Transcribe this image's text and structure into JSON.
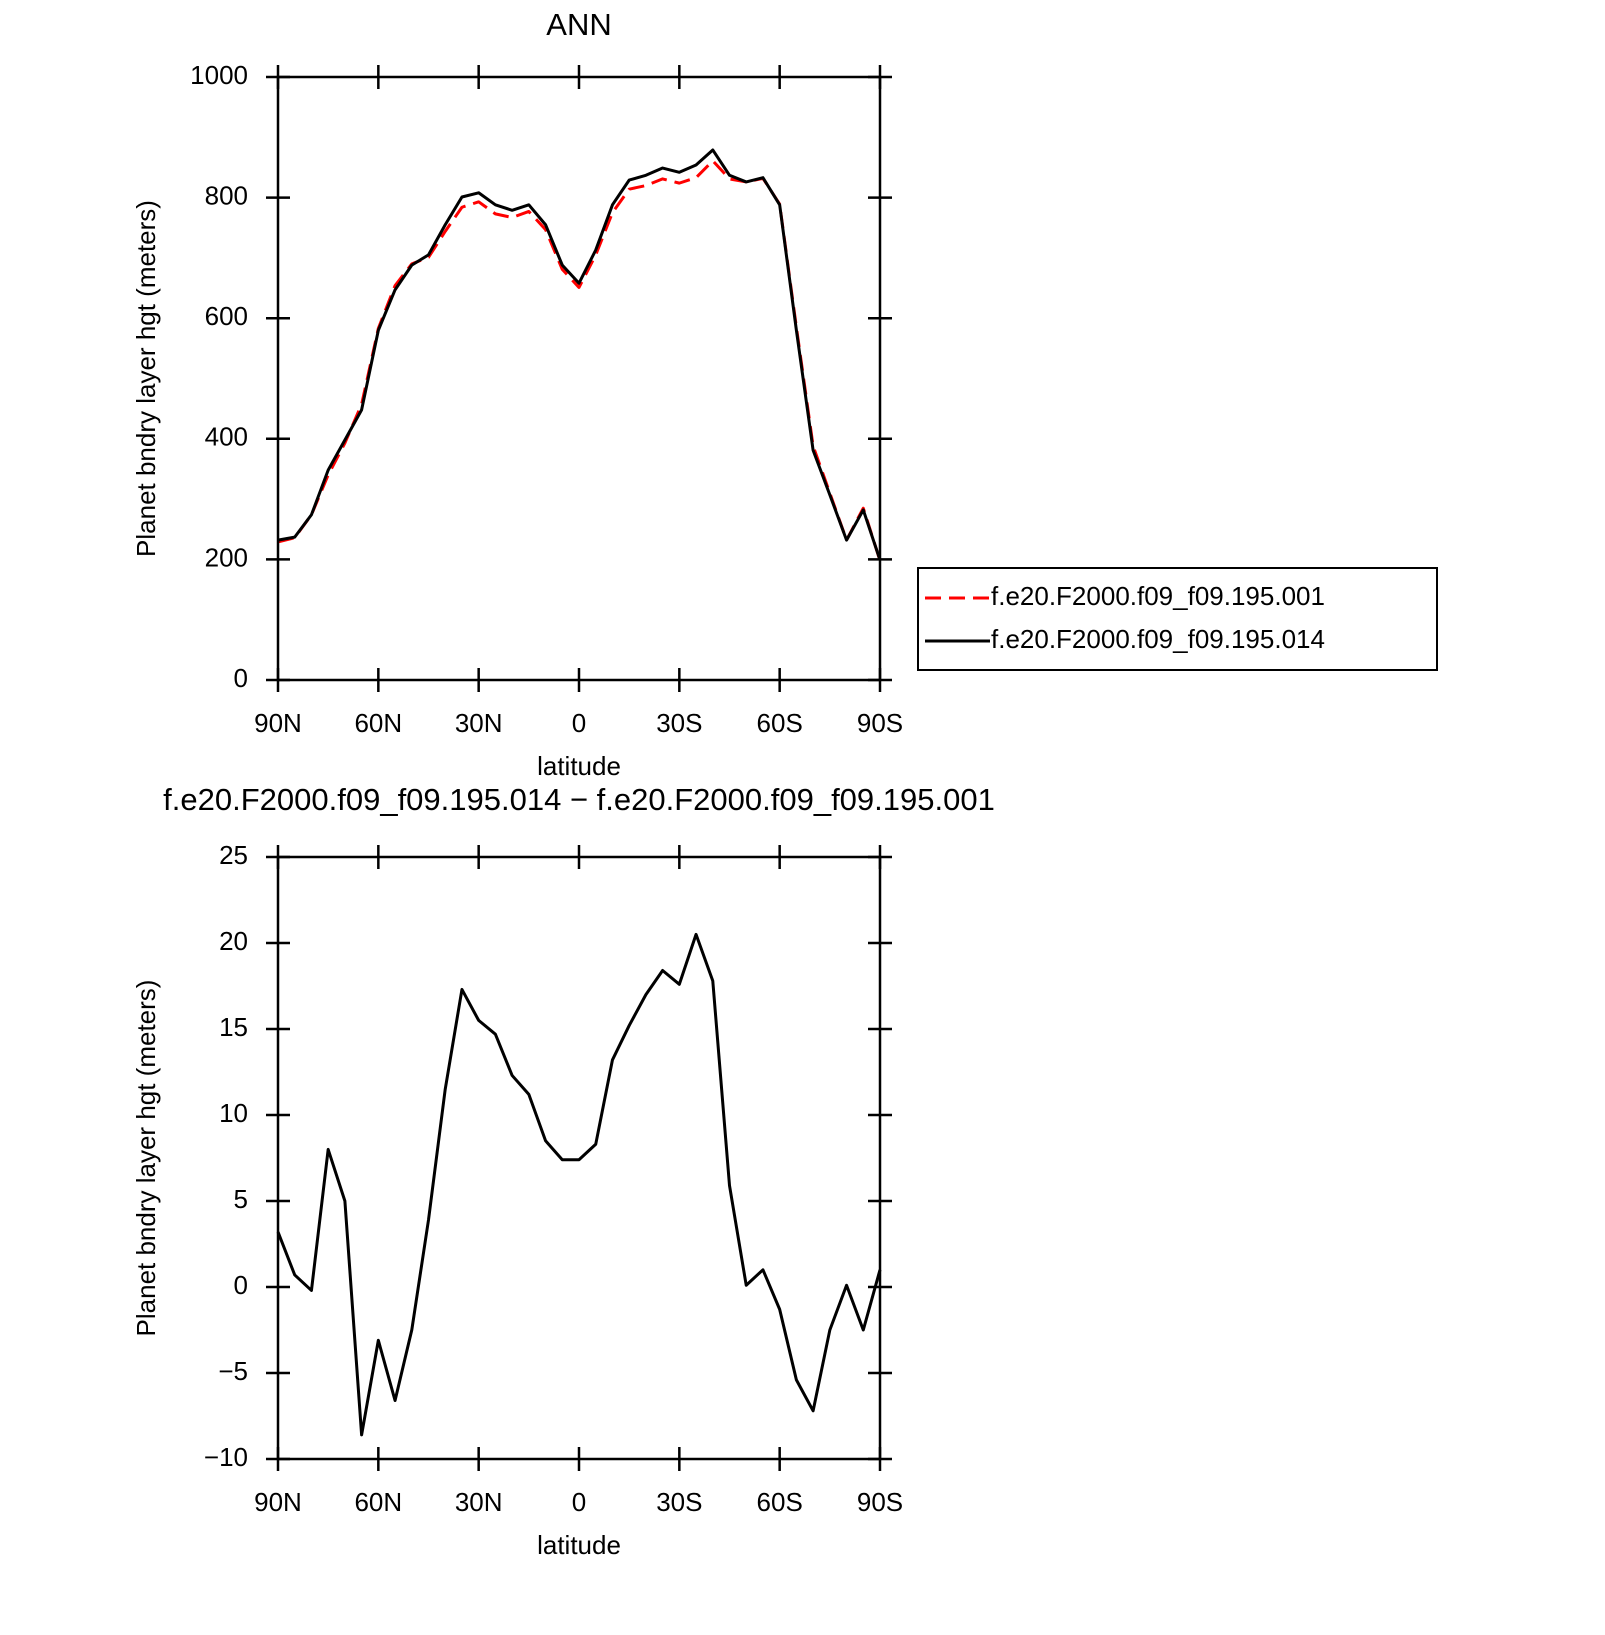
{
  "chart_data": [
    {
      "type": "line",
      "title": "ANN",
      "xlabel": "latitude",
      "ylabel": "Planet bndry layer hgt (meters)",
      "x": [
        90,
        85,
        80,
        75,
        70,
        65,
        60,
        55,
        50,
        45,
        40,
        35,
        30,
        25,
        20,
        15,
        10,
        5,
        0,
        -5,
        -10,
        -15,
        -20,
        -25,
        -30,
        -35,
        -40,
        -45,
        -50,
        -55,
        -60,
        -65,
        -70,
        -75,
        -80,
        -85,
        -90
      ],
      "series": [
        {
          "name": "f.e20.F2000.f09_f09.195.001",
          "color": "#ff0000",
          "dash": true,
          "values": [
            229,
            236,
            274,
            340,
            393,
            457,
            583,
            654,
            690,
            701,
            744,
            784,
            793,
            773,
            767,
            777,
            747,
            681,
            651,
            705,
            775,
            814,
            820,
            831,
            824,
            833,
            861,
            831,
            826,
            832,
            789,
            585,
            388,
            310,
            232,
            285,
            198
          ]
        },
        {
          "name": "f.e20.F2000.f09_f09.195.014",
          "color": "#000000",
          "dash": false,
          "values": [
            232,
            237,
            274,
            348,
            398,
            448,
            580,
            647,
            688,
            705,
            755,
            801,
            808,
            788,
            779,
            788,
            755,
            688,
            658,
            713,
            788,
            829,
            837,
            849,
            842,
            854,
            879,
            837,
            826,
            833,
            788,
            580,
            381,
            307,
            232,
            282,
            199
          ]
        }
      ],
      "xlim": [
        90,
        -90
      ],
      "xticks": [
        {
          "value": 90,
          "label": "90N"
        },
        {
          "value": 60,
          "label": "60N"
        },
        {
          "value": 30,
          "label": "30N"
        },
        0,
        {
          "value": -30,
          "label": "30S"
        },
        {
          "value": -60,
          "label": "60S"
        },
        {
          "value": -90,
          "label": "90S"
        }
      ],
      "ylim": [
        0,
        1000
      ],
      "yticks": [
        0,
        200,
        400,
        600,
        800,
        1000
      ],
      "grid": false,
      "legend": "right"
    },
    {
      "type": "line",
      "title": "f.e20.F2000.f09_f09.195.014 − f.e20.F2000.f09_f09.195.001",
      "xlabel": "latitude",
      "ylabel": "Planet bndry layer hgt (meters)",
      "x": [
        90,
        85,
        80,
        75,
        70,
        65,
        60,
        55,
        50,
        45,
        40,
        35,
        30,
        25,
        20,
        15,
        10,
        5,
        0,
        -5,
        -10,
        -15,
        -20,
        -25,
        -30,
        -35,
        -40,
        -45,
        -50,
        -55,
        -60,
        -65,
        -70,
        -75,
        -80,
        -85,
        -90
      ],
      "series": [
        {
          "color": "#000000",
          "dash": false,
          "values": [
            3.2,
            0.7,
            -0.2,
            8,
            5,
            -8.6,
            -3.1,
            -6.6,
            -2.5,
            3.9,
            11.5,
            17.3,
            15.5,
            14.7,
            12.3,
            11.2,
            8.5,
            7.4,
            7.4,
            8.3,
            13.2,
            15.2,
            17,
            18.4,
            17.6,
            20.5,
            17.8,
            5.9,
            0.1,
            1,
            -1.3,
            -5.4,
            -7.2,
            -2.5,
            0.1,
            -2.5,
            1
          ]
        }
      ],
      "xlim": [
        90,
        -90
      ],
      "xticks": [
        {
          "value": 90,
          "label": "90N"
        },
        {
          "value": 60,
          "label": "60N"
        },
        {
          "value": 30,
          "label": "30N"
        },
        0,
        {
          "value": -30,
          "label": "30S"
        },
        {
          "value": -60,
          "label": "60S"
        },
        {
          "value": -90,
          "label": "90S"
        }
      ],
      "ylim": [
        -10,
        25
      ],
      "yticks": [
        {
          "value": -10,
          "label": "−10"
        },
        {
          "value": -5,
          "label": "−5"
        },
        0,
        5,
        10,
        15,
        20,
        25
      ],
      "grid": false
    }
  ]
}
